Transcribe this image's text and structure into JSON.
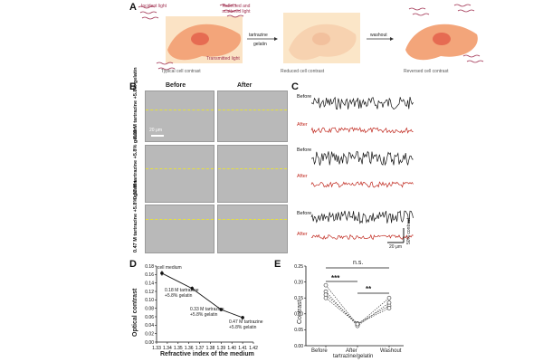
{
  "panelA": {
    "label": "A",
    "incident": "Incident light",
    "reflected": "Reflected and scattered light",
    "transmitted": "Transmitted light",
    "arrow1_top": "tartrazine",
    "arrow1_bottom": "gelatin",
    "arrow2": "washout",
    "cap1": "Typical cell contrast",
    "cap2": "Reduced cell contrast",
    "cap3": "Reversed cell contrast"
  },
  "panelB": {
    "label": "B",
    "before": "Before",
    "after": "After",
    "rows": [
      "0.18 M tartrazine +5.8% gelatin",
      "0.33 M tartrazine +5.8% gelatin",
      "0.47 M tartrazine +5.8% gelatin"
    ],
    "scale": "20 μm"
  },
  "panelC": {
    "label": "C",
    "before": "Before",
    "after": "After",
    "scale_x": "20 μm",
    "scale_y": "50% contrast"
  },
  "panelD": {
    "label": "D",
    "ylabel": "Optical contrast",
    "xlabel": "Refractive index of the medium",
    "ann0": "cell medium",
    "ann1a": "0.18 M tartrazine",
    "ann1b": "+5.8% gelatin",
    "ann2a": "0.33 M tartrazine",
    "ann2b": "+5.8% gelatin",
    "ann3a": "0.47 M tartrazine",
    "ann3b": "+5.8% gelatin"
  },
  "panelE": {
    "label": "E",
    "ylabel": "Contrast",
    "ns": "n.s.",
    "stars3": "***",
    "stars2": "**",
    "xcat1": "Before",
    "xcat2a": "After",
    "xcat2b": "tartrazine/gelatin",
    "xcat3": "Washout"
  },
  "chart_data": [
    {
      "type": "line",
      "xlabel": "Refractive index of the medium",
      "ylabel": "Optical contrast",
      "xlim": [
        1.33,
        1.42
      ],
      "ylim": [
        0.0,
        0.18
      ],
      "xticks": [
        "1.33",
        "1.34",
        "1.35",
        "1.36",
        "1.37",
        "1.38",
        "1.39",
        "1.40",
        "1.41",
        "1.42"
      ],
      "yticks": [
        "0.00",
        "0.02",
        "0.04",
        "0.06",
        "0.08",
        "0.10",
        "0.12",
        "0.14",
        "0.16",
        "0.18"
      ],
      "x": [
        1.335,
        1.363,
        1.39,
        1.41
      ],
      "values": [
        0.163,
        0.127,
        0.077,
        0.058
      ],
      "errors": [
        0.006,
        0.005,
        0.004,
        0.004
      ]
    },
    {
      "type": "scatter",
      "ylabel": "Contrast",
      "categories": [
        "Before",
        "After tartrazine/gelatin",
        "Washout"
      ],
      "ylim": [
        0.0,
        0.25
      ],
      "yticks": [
        "0.00",
        "0.05",
        "0.10",
        "0.15",
        "0.20",
        "0.25"
      ],
      "series": [
        {
          "values": [
            0.19,
            0.065,
            0.15
          ]
        },
        {
          "values": [
            0.17,
            0.062,
            0.135
          ]
        },
        {
          "values": [
            0.16,
            0.07,
            0.125
          ]
        },
        {
          "values": [
            0.15,
            0.068,
            0.118
          ]
        }
      ]
    }
  ]
}
